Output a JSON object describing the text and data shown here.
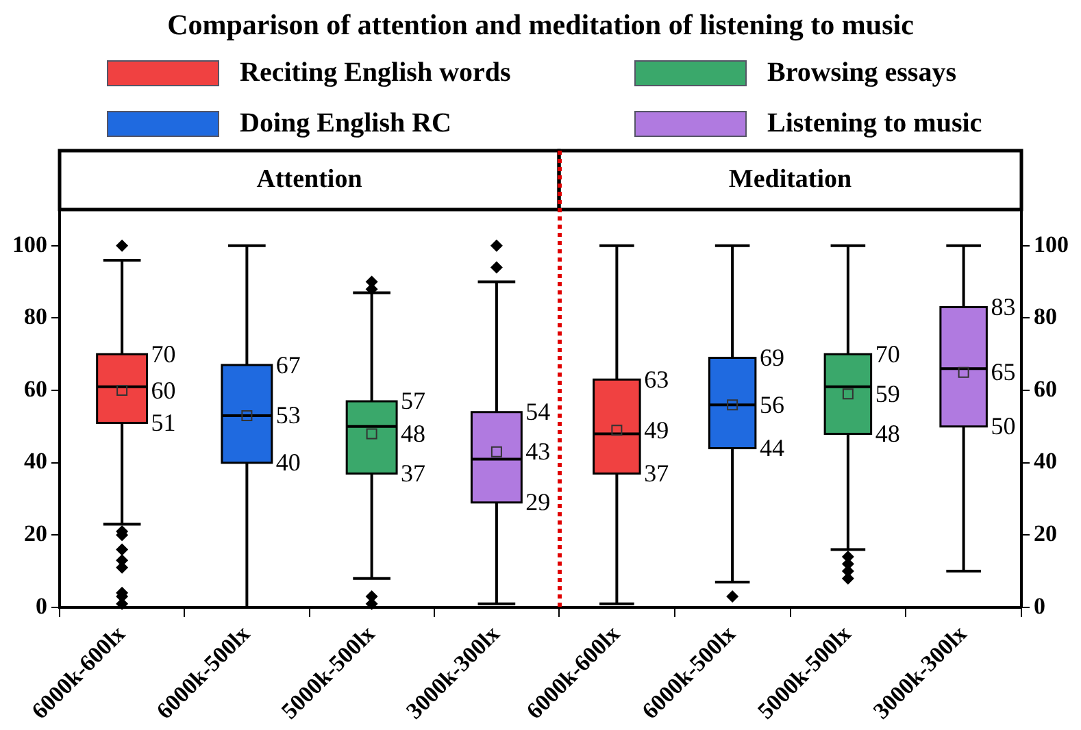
{
  "chart_data": [
    {
      "type": "box",
      "title": "Comparison of attention and meditation of listening to music",
      "subtitle": "Attention",
      "categories": [
        "6000k-600lx",
        "6000k-500lx",
        "5000k-500lx",
        "3000k-300lx"
      ],
      "series": [
        {
          "name": "Reciting English words",
          "color": "#f04141",
          "boxes": [
            {
              "low": 23,
              "q1": 51,
              "median": 61,
              "q3": 70,
              "high": 96,
              "mean": 60,
              "outliers": [
                100,
                21,
                20,
                16,
                13,
                11,
                4,
                3,
                1
              ]
            },
            null,
            null,
            null
          ]
        },
        {
          "name": "Doing English RC",
          "color": "#1f6ae0",
          "boxes": [
            null,
            {
              "low": 0,
              "q1": 40,
              "median": 53,
              "q3": 67,
              "high": 100,
              "mean": 53
            },
            null,
            null
          ]
        },
        {
          "name": "Browsing essays",
          "color": "#3aa86b",
          "boxes": [
            null,
            null,
            {
              "low": 8,
              "q1": 37,
              "median": 50,
              "q3": 57,
              "high": 87,
              "mean": 48,
              "outliers": [
                90,
                88,
                3,
                1
              ]
            },
            null
          ]
        },
        {
          "name": "Listening to music",
          "color": "#b07ae0",
          "boxes": [
            null,
            null,
            null,
            {
              "low": 1,
              "q1": 29,
              "median": 41,
              "q3": 54,
              "high": 90,
              "mean": 43,
              "outliers": [
                100,
                94
              ]
            }
          ]
        }
      ],
      "annotations": [
        {
          "text": "70",
          "x": "6000k-600lx",
          "y": 70
        },
        {
          "text": "60",
          "x": "6000k-600lx",
          "y": 60
        },
        {
          "text": "51",
          "x": "6000k-600lx",
          "y": 51
        },
        {
          "text": "67",
          "x": "6000k-500lx",
          "y": 67
        },
        {
          "text": "53",
          "x": "6000k-500lx",
          "y": 53
        },
        {
          "text": "40",
          "x": "6000k-500lx",
          "y": 40
        },
        {
          "text": "57",
          "x": "5000k-500lx",
          "y": 57
        },
        "48",
        {
          "text": "37",
          "x": "5000k-500lx",
          "y": 37
        },
        {
          "text": "54",
          "x": "3000k-300lx",
          "y": 54
        },
        "43",
        {
          "text": "29",
          "x": "3000k-300lx",
          "y": 29
        }
      ],
      "ylim": [
        0,
        110
      ],
      "yticks": [
        0,
        20,
        40,
        60,
        80,
        100
      ],
      "marker": "diamond",
      "legend": "top"
    },
    {
      "type": "box",
      "subtitle": "Meditation",
      "categories": [
        "6000k-600lx",
        "6000k-500lx",
        "5000k-500lx",
        "3000k-300lx"
      ],
      "series": [
        {
          "color": "#f04141",
          "boxes": [
            {
              "low": 1,
              "q1": 37,
              "median": 48,
              "q3": 63,
              "high": 100,
              "mean": 49
            },
            null,
            null,
            null
          ]
        },
        {
          "color": "#1f6ae0",
          "boxes": [
            null,
            {
              "low": 7,
              "q1": 44,
              "median": 56,
              "q3": 69,
              "high": 100,
              "mean": 56,
              "outliers": [
                3
              ]
            },
            null,
            null
          ]
        },
        {
          "color": "#3aa86b",
          "boxes": [
            null,
            null,
            {
              "low": 16,
              "q1": 48,
              "median": 61,
              "q3": 70,
              "high": 100,
              "mean": 59,
              "outliers": [
                14,
                12,
                10,
                8
              ]
            },
            null
          ]
        },
        {
          "color": "#b07ae0",
          "boxes": [
            null,
            null,
            null,
            {
              "low": 10,
              "q1": 50,
              "median": 66,
              "q3": 83,
              "high": 100,
              "mean": 65
            }
          ]
        }
      ],
      "annotations": [
        {
          "text": "63",
          "x": "6000k-600lx",
          "y": 63
        },
        {
          "text": "49",
          "x": "6000k-600lx",
          "y": 49
        },
        {
          "text": "37",
          "x": "6000k-600lx",
          "y": 37
        },
        {
          "text": "69",
          "x": "6000k-500lx",
          "y": 69
        },
        {
          "text": "56",
          "x": "6000k-500lx",
          "y": 56
        },
        {
          "text": "44",
          "x": "6000k-500lx",
          "y": 44
        },
        {
          "text": "70",
          "x": "5000k-500lx",
          "y": 70
        },
        "59",
        {
          "text": "48",
          "x": "5000k-500lx",
          "y": 48
        },
        {
          "text": "83",
          "x": "3000k-300lx",
          "y": 83
        },
        {
          "text": "65",
          "x": "3000k-300lx",
          "y": 65
        },
        {
          "text": "50",
          "x": "3000k-300lx",
          "y": 50
        }
      ],
      "ylim": [
        0,
        110
      ],
      "yticks": [
        0,
        20,
        40,
        60,
        80,
        100
      ],
      "marker": "diamond"
    }
  ]
}
